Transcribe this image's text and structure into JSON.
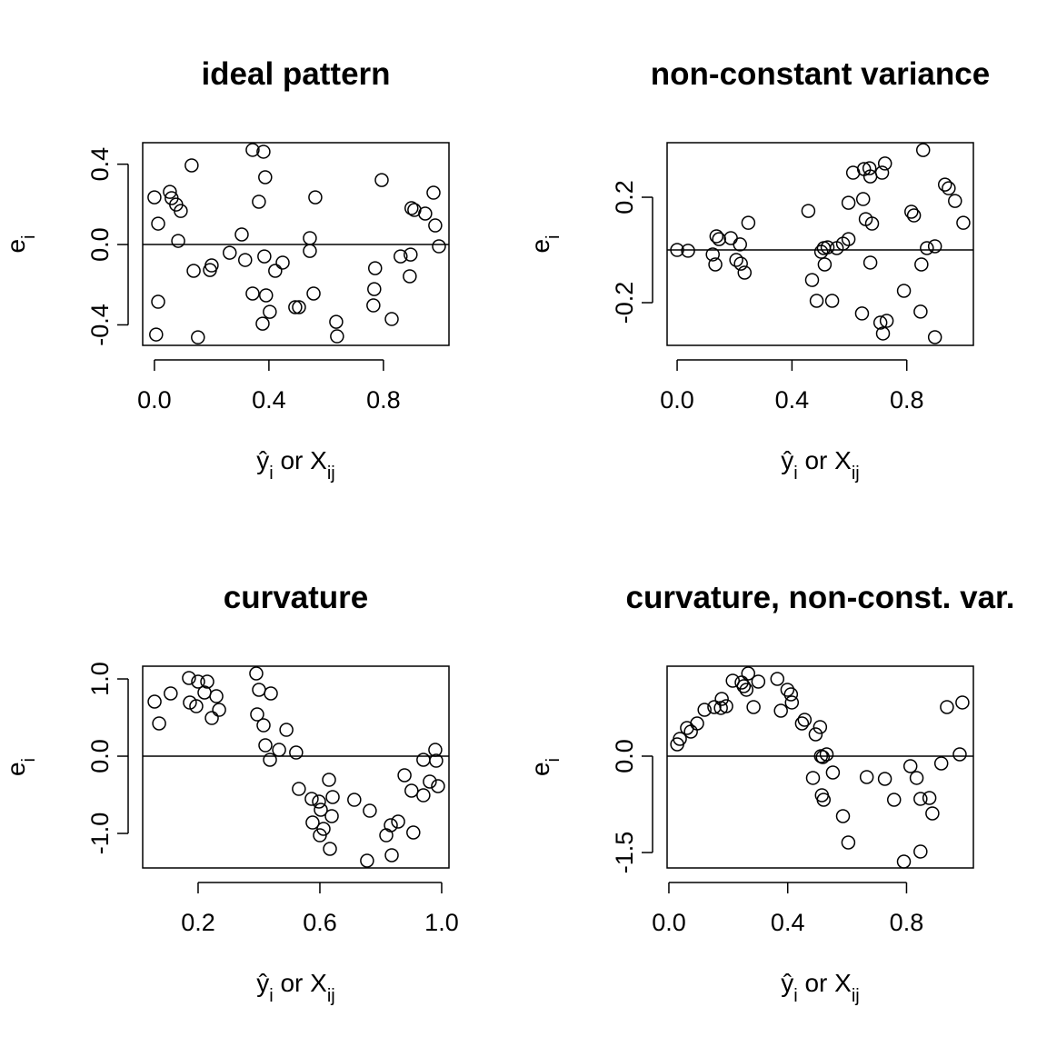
{
  "chart_data": [
    {
      "type": "scatter",
      "title": "ideal pattern",
      "xlabel": [
        "ŷ",
        "i",
        " or X",
        "ij"
      ],
      "ylabel": [
        "e",
        "i"
      ],
      "xlim": [
        -0.041,
        1.029
      ],
      "ylim": [
        -0.502,
        0.507
      ],
      "xticks": [
        {
          "value": 0,
          "label": "0.0"
        },
        0.4,
        0.8
      ],
      "yticks": [
        -0.4,
        {
          "value": 0,
          "label": "0.0"
        },
        0.4
      ],
      "hline": 0,
      "color": "#000000",
      "x": [
        0,
        0.013,
        0.013,
        0.006,
        0.054,
        0.06,
        0.076,
        0.092,
        0.083,
        0.13,
        0.137,
        0.152,
        0.194,
        0.2,
        0.263,
        0.305,
        0.317,
        0.343,
        0.343,
        0.381,
        0.365,
        0.387,
        0.384,
        0.39,
        0.378,
        0.403,
        0.422,
        0.448,
        0.492,
        0.505,
        0.543,
        0.543,
        0.556,
        0.562,
        0.635,
        0.638,
        0.765,
        0.768,
        0.771,
        0.794,
        0.829,
        0.86,
        0.892,
        0.895,
        0.898,
        0.908,
        0.946,
        0.975,
        0.981,
        0.994
      ],
      "values": [
        0.235,
        0.104,
        -0.285,
        -0.448,
        0.262,
        0.231,
        0.199,
        0.167,
        0.018,
        0.394,
        -0.131,
        -0.462,
        -0.127,
        -0.104,
        -0.041,
        0.05,
        -0.077,
        0.471,
        -0.244,
        0.462,
        0.213,
        0.335,
        -0.059,
        -0.253,
        -0.394,
        -0.335,
        -0.131,
        -0.09,
        -0.312,
        -0.312,
        0.032,
        -0.032,
        -0.244,
        0.235,
        -0.385,
        -0.457,
        -0.303,
        -0.222,
        -0.118,
        0.321,
        -0.371,
        -0.059,
        -0.158,
        -0.05,
        0.181,
        0.172,
        0.154,
        0.258,
        0.095,
        -0.009
      ]
    },
    {
      "type": "scatter",
      "title": "non-constant variance",
      "xlabel": [
        "ŷ",
        "i",
        " or X",
        "ij"
      ],
      "ylabel": [
        "e",
        "i"
      ],
      "xlim": [
        -0.035,
        1.032
      ],
      "ylim": [
        -0.362,
        0.407
      ],
      "xticks": [
        {
          "value": 0,
          "label": "0.0"
        },
        0.4,
        0.8
      ],
      "yticks": [
        -0.2,
        0.2
      ],
      "hline": 0,
      "color": "#000000",
      "x": [
        0,
        0.038,
        0.124,
        0.133,
        0.137,
        0.146,
        0.187,
        0.206,
        0.219,
        0.222,
        0.235,
        0.248,
        0.457,
        0.47,
        0.486,
        0.502,
        0.511,
        0.514,
        0.524,
        0.54,
        0.556,
        0.578,
        0.597,
        0.597,
        0.613,
        0.644,
        0.648,
        0.651,
        0.657,
        0.67,
        0.673,
        0.673,
        0.679,
        0.708,
        0.714,
        0.717,
        0.724,
        0.73,
        0.79,
        0.816,
        0.825,
        0.848,
        0.857,
        0.851,
        0.87,
        0.898,
        0.898,
        0.933,
        0.946,
        0.968,
        0.997
      ],
      "values": [
        0,
        -0.003,
        -0.017,
        -0.055,
        0.052,
        0.041,
        0.045,
        -0.038,
        0.021,
        -0.052,
        -0.086,
        0.103,
        0.148,
        -0.114,
        -0.193,
        -0.007,
        0.007,
        -0.055,
        0.01,
        -0.193,
        0.007,
        0.024,
        0.041,
        0.179,
        0.293,
        -0.241,
        0.193,
        0.307,
        0.117,
        0.31,
        0.279,
        -0.048,
        0.1,
        -0.276,
        0.293,
        -0.317,
        0.328,
        -0.269,
        -0.155,
        0.145,
        0.131,
        -0.234,
        0.379,
        -0.055,
        0.007,
        0.014,
        -0.331,
        0.248,
        0.234,
        0.186,
        0.103
      ]
    },
    {
      "type": "scatter",
      "title": "curvature",
      "xlabel": [
        "ŷ",
        "i",
        " or X",
        "ij"
      ],
      "ylabel": [
        "e",
        "i"
      ],
      "xlim": [
        0.018,
        1.024
      ],
      "ylim": [
        -1.447,
        1.165
      ],
      "xticks": [
        0.2,
        0.6,
        {
          "value": 1,
          "label": "1.0"
        }
      ],
      "yticks": [
        {
          "value": -1,
          "label": "-1.0"
        },
        {
          "value": 0,
          "label": "0.0"
        },
        {
          "value": 1,
          "label": "1.0"
        }
      ],
      "hline": 0,
      "color": "#000000",
      "x": [
        0.057,
        0.072,
        0.11,
        0.17,
        0.173,
        0.194,
        0.2,
        0.221,
        0.23,
        0.245,
        0.26,
        0.269,
        0.391,
        0.394,
        0.4,
        0.415,
        0.421,
        0.439,
        0.436,
        0.466,
        0.49,
        0.522,
        0.531,
        0.573,
        0.576,
        0.597,
        0.6,
        0.603,
        0.612,
        0.63,
        0.633,
        0.639,
        0.642,
        0.713,
        0.755,
        0.764,
        0.818,
        0.836,
        0.833,
        0.857,
        0.878,
        0.901,
        0.907,
        0.94,
        0.94,
        0.961,
        0.979,
        0.982,
        0.988
      ],
      "values": [
        0.706,
        0.424,
        0.812,
        1.012,
        0.694,
        0.647,
        0.965,
        0.824,
        0.965,
        0.494,
        0.776,
        0.6,
        1.071,
        0.541,
        0.859,
        0.4,
        0.141,
        0.812,
        -0.047,
        0.082,
        0.341,
        0.047,
        -0.424,
        -0.553,
        -0.859,
        -0.588,
        -1.024,
        -0.694,
        -0.941,
        -0.306,
        -1.2,
        -0.776,
        -0.529,
        -0.565,
        -1.353,
        -0.706,
        -1.024,
        -1.282,
        -0.894,
        -0.847,
        -0.247,
        -0.447,
        -0.988,
        -0.047,
        -0.506,
        -0.329,
        0.082,
        -0.059,
        -0.388
      ]
    },
    {
      "type": "scatter",
      "title": "curvature, non-const. var.",
      "xlabel": [
        "ŷ",
        "i",
        " or X",
        "ij"
      ],
      "ylabel": [
        "e",
        "i"
      ],
      "xlim": [
        -0.006,
        1.025
      ],
      "ylim": [
        -1.74,
        1.4
      ],
      "xticks": [
        {
          "value": 0,
          "label": "0.0"
        },
        0.4,
        0.8
      ],
      "yticks": [
        -1.5,
        {
          "value": 0,
          "label": "0.0"
        }
      ],
      "hline": 0,
      "color": "#000000",
      "x": [
        0.028,
        0.037,
        0.061,
        0.074,
        0.095,
        0.12,
        0.153,
        0.175,
        0.178,
        0.193,
        0.215,
        0.245,
        0.252,
        0.261,
        0.267,
        0.285,
        0.301,
        0.365,
        0.377,
        0.399,
        0.411,
        0.414,
        0.448,
        0.457,
        0.485,
        0.494,
        0.509,
        0.512,
        0.515,
        0.521,
        0.518,
        0.531,
        0.552,
        0.586,
        0.604,
        0.666,
        0.727,
        0.758,
        0.791,
        0.813,
        0.834,
        0.847,
        0.847,
        0.877,
        0.887,
        0.917,
        0.936,
        0.979,
        0.988
      ],
      "values": [
        0.184,
        0.269,
        0.438,
        0.382,
        0.509,
        0.721,
        0.764,
        0.75,
        0.891,
        0.778,
        1.174,
        1.146,
        1.089,
        1.033,
        1.287,
        0.764,
        1.16,
        1.202,
        0.707,
        1.033,
        0.962,
        0.835,
        0.509,
        0.566,
        -0.339,
        0.339,
        0.453,
        0,
        -0.608,
        -0.679,
        -0.014,
        0.028,
        -0.255,
        -0.934,
        -1.344,
        -0.325,
        -0.354,
        -0.679,
        -1.641,
        -0.156,
        -0.339,
        -0.665,
        -1.485,
        -0.651,
        -0.891,
        -0.113,
        0.764,
        0.028,
        0.835
      ]
    }
  ]
}
